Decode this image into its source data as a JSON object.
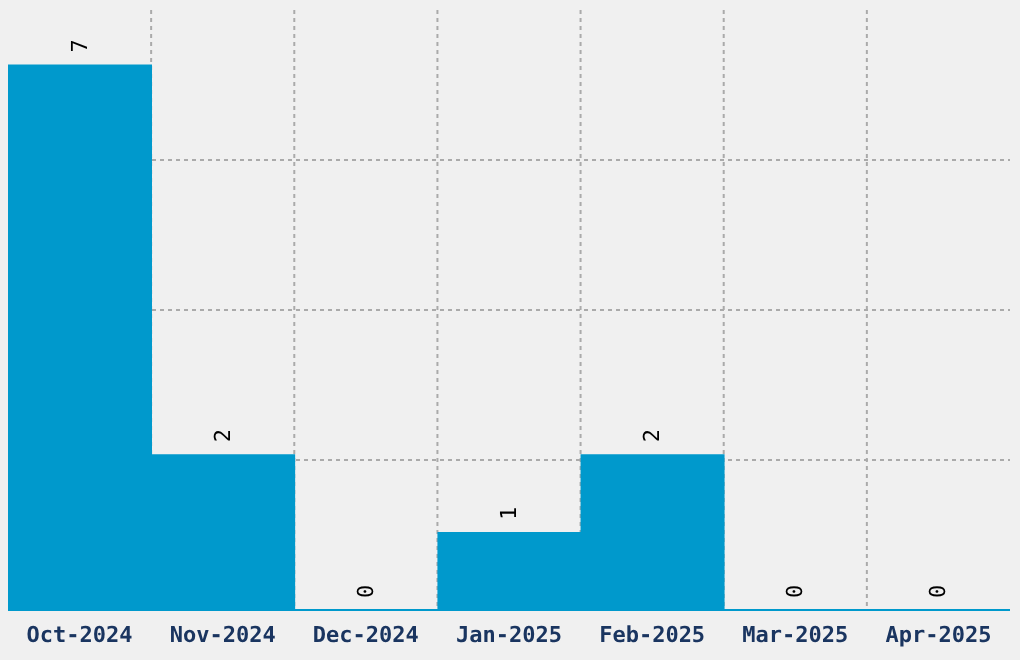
{
  "chart_data": {
    "type": "bar",
    "categories": [
      "Oct-2024",
      "Nov-2024",
      "Dec-2024",
      "Jan-2025",
      "Feb-2025",
      "Mar-2025",
      "Apr-2025"
    ],
    "values": [
      7,
      2,
      0,
      1,
      2,
      0,
      0
    ],
    "color": "#0099cc",
    "ylim": [
      0,
      7.7
    ],
    "tick_labels": "x",
    "grid": true,
    "data_labels": true
  }
}
